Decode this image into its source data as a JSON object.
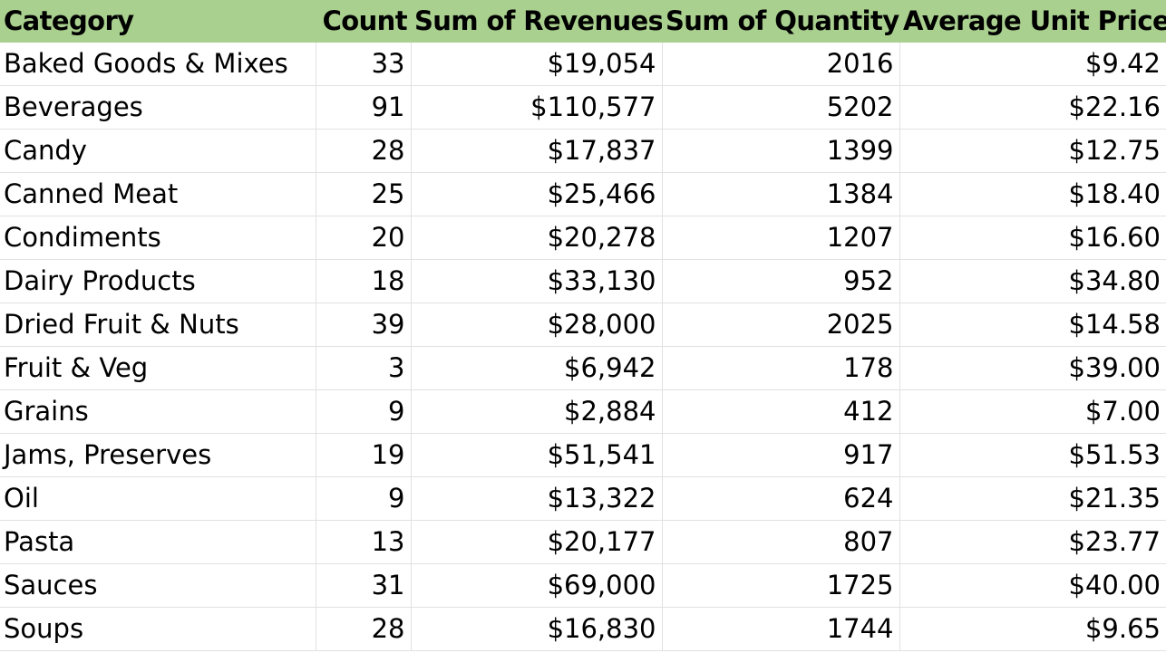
{
  "table": {
    "headers": [
      "Category",
      "Count",
      "Sum of Revenues",
      "Sum of Quantity",
      "Average Unit Price"
    ],
    "header_bg": "#a9d08e",
    "rows": [
      [
        "Baked Goods & Mixes",
        "33",
        "$19,054",
        "2016",
        "$9.42"
      ],
      [
        "Beverages",
        "91",
        "$110,577",
        "5202",
        "$22.16"
      ],
      [
        "Candy",
        "28",
        "$17,837",
        "1399",
        "$12.75"
      ],
      [
        "Canned Meat",
        "25",
        "$25,466",
        "1384",
        "$18.40"
      ],
      [
        "Condiments",
        "20",
        "$20,278",
        "1207",
        "$16.60"
      ],
      [
        "Dairy Products",
        "18",
        "$33,130",
        "952",
        "$34.80"
      ],
      [
        "Dried Fruit & Nuts",
        "39",
        "$28,000",
        "2025",
        "$14.58"
      ],
      [
        "Fruit & Veg",
        "3",
        "$6,942",
        "178",
        "$39.00"
      ],
      [
        "Grains",
        "9",
        "$2,884",
        "412",
        "$7.00"
      ],
      [
        "Jams, Preserves",
        "19",
        "$51,541",
        "917",
        "$51.53"
      ],
      [
        "Oil",
        "9",
        "$13,322",
        "624",
        "$21.35"
      ],
      [
        "Pasta",
        "13",
        "$20,177",
        "807",
        "$23.77"
      ],
      [
        "Sauces",
        "31",
        "$69,000",
        "1725",
        "$40.00"
      ],
      [
        "Soups",
        "28",
        "$16,830",
        "1744",
        "$9.65"
      ]
    ]
  }
}
